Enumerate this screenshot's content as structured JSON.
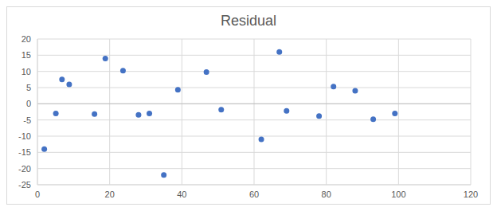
{
  "chart_data": {
    "type": "scatter",
    "title": "Residual",
    "x": [
      1.9,
      5.1,
      6.8,
      8.8,
      15.8,
      18.8,
      23.7,
      28,
      31,
      35,
      38.9,
      46.8,
      50.9,
      62,
      67,
      69,
      78,
      82,
      88,
      93,
      99
    ],
    "values": [
      -14,
      -3,
      7.5,
      6,
      -3.2,
      14,
      10.2,
      -3.4,
      -3,
      -22,
      4.3,
      9.8,
      -1.8,
      -11,
      16,
      -2.2,
      -3.8,
      5.3,
      4,
      -4.8,
      -3
    ],
    "color": "#4472c4",
    "marker": "circle",
    "xlim": [
      0,
      120
    ],
    "xticks": [
      0,
      20,
      40,
      60,
      80,
      100,
      120
    ],
    "ylim": [
      -25,
      20
    ],
    "yticks": [
      -25,
      -20,
      -15,
      -10,
      -5,
      0,
      5,
      10,
      15,
      20
    ],
    "grid": true
  }
}
